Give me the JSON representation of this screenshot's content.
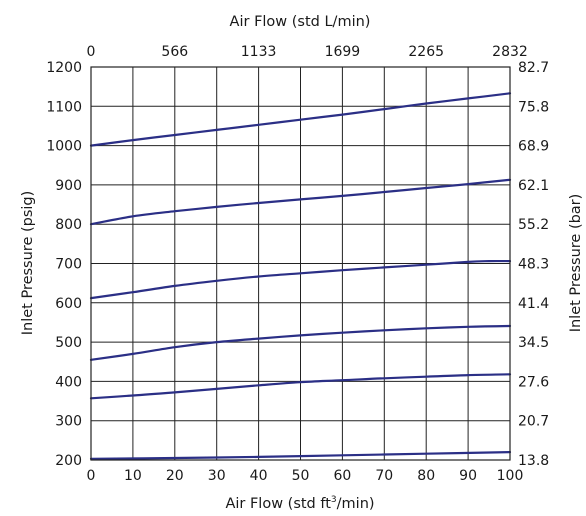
{
  "chart_data": {
    "type": "line",
    "xlabel_prefix": "Air Flow (std ft",
    "xlabel_sup": "3",
    "xlabel_suffix": "/min)",
    "x2label": "Air Flow (std L/min)",
    "ylabel": "Inlet Pressure (psig)",
    "y2label": "Inlet Pressure (bar)",
    "xlim": [
      0,
      100
    ],
    "ylim": [
      200,
      1200
    ],
    "x_ticks": [
      0,
      10,
      20,
      30,
      40,
      50,
      60,
      70,
      80,
      90,
      100
    ],
    "y_ticks": [
      200,
      300,
      400,
      500,
      600,
      700,
      800,
      900,
      1000,
      1100,
      1200
    ],
    "x2_ticks": [
      {
        "x": 0,
        "label": "0"
      },
      {
        "x": 20,
        "label": "566"
      },
      {
        "x": 40,
        "label": "1133"
      },
      {
        "x": 60,
        "label": "1699"
      },
      {
        "x": 80,
        "label": "2265"
      },
      {
        "x": 100,
        "label": "2832"
      }
    ],
    "y2_ticks": [
      {
        "y": 200,
        "label": "13.8"
      },
      {
        "y": 300,
        "label": "20.7"
      },
      {
        "y": 400,
        "label": "27.6"
      },
      {
        "y": 500,
        "label": "34.5"
      },
      {
        "y": 600,
        "label": "41.4"
      },
      {
        "y": 700,
        "label": "48.3"
      },
      {
        "y": 800,
        "label": "55.2"
      },
      {
        "y": 900,
        "label": "62.1"
      },
      {
        "y": 1000,
        "label": "68.9"
      },
      {
        "y": 1100,
        "label": "75.8"
      },
      {
        "y": 1200,
        "label": "82.7"
      }
    ],
    "grid": true,
    "line_color": "#2b2f86",
    "series": [
      {
        "x": [
          0,
          10,
          20,
          30,
          40,
          50,
          60,
          70,
          80,
          90,
          100
        ],
        "y": [
          1000,
          1014,
          1027,
          1040,
          1053,
          1066,
          1079,
          1093,
          1107,
          1120,
          1133
        ]
      },
      {
        "x": [
          0,
          10,
          20,
          30,
          40,
          50,
          60,
          70,
          80,
          90,
          100
        ],
        "y": [
          800,
          820,
          833,
          844,
          854,
          863,
          872,
          882,
          892,
          902,
          913
        ]
      },
      {
        "x": [
          0,
          10,
          20,
          30,
          40,
          50,
          60,
          70,
          80,
          90,
          95,
          100
        ],
        "y": [
          612,
          627,
          643,
          656,
          667,
          675,
          683,
          690,
          697,
          704,
          706,
          706
        ]
      },
      {
        "x": [
          0,
          10,
          20,
          30,
          40,
          50,
          60,
          70,
          80,
          90,
          100
        ],
        "y": [
          455,
          470,
          487,
          500,
          509,
          517,
          524,
          530,
          535,
          539,
          541
        ]
      },
      {
        "x": [
          0,
          10,
          20,
          30,
          40,
          50,
          60,
          70,
          80,
          90,
          100
        ],
        "y": [
          357,
          364,
          372,
          381,
          390,
          398,
          403,
          408,
          412,
          416,
          418
        ]
      },
      {
        "x": [
          0,
          20,
          40,
          60,
          80,
          100
        ],
        "y": [
          203,
          205,
          208,
          212,
          216,
          220
        ]
      }
    ]
  }
}
